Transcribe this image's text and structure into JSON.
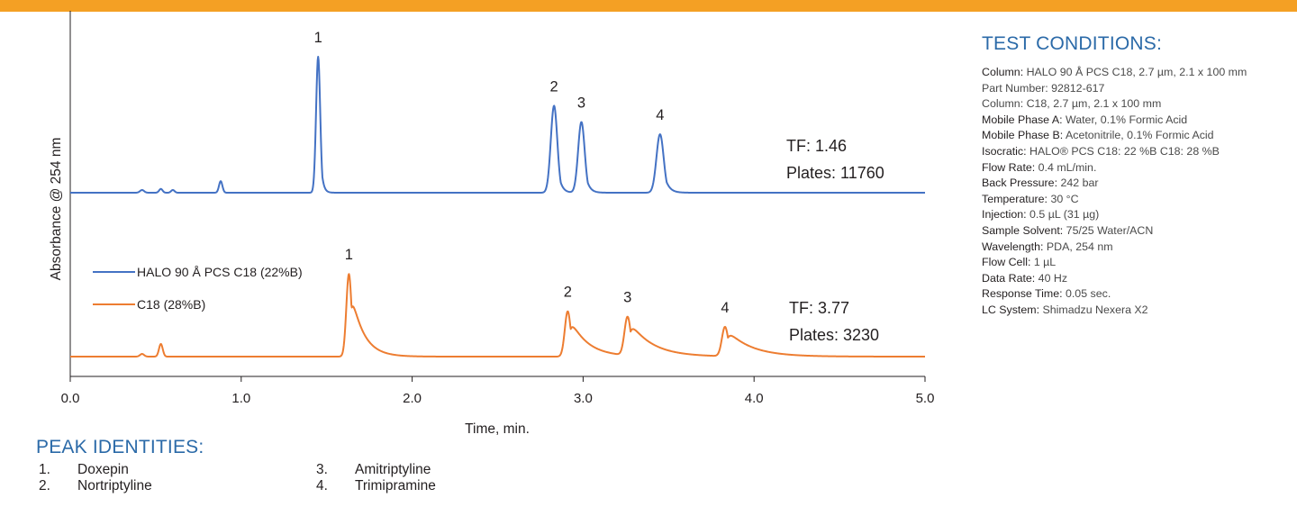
{
  "colors": {
    "banner": "#f4a024",
    "halo": "#4472c4",
    "c18": "#ed7d31",
    "heading": "#2b6aa8"
  },
  "chart_data": {
    "type": "line",
    "xlabel": "Time, min.",
    "ylabel": "Absorbance @ 254 nm",
    "xlim": [
      0,
      5
    ],
    "x_ticks": [
      "0.0",
      "1.0",
      "2.0",
      "3.0",
      "4.0",
      "5.0"
    ],
    "legend_position": "left",
    "series": [
      {
        "name": "HALO 90 Å PCS C18 (22%B)",
        "color": "#4472c4",
        "peaks": [
          {
            "t": 0.42,
            "h": 0.02,
            "w": 0.012
          },
          {
            "t": 0.53,
            "h": 0.028,
            "w": 0.01
          },
          {
            "t": 0.6,
            "h": 0.02,
            "w": 0.01
          },
          {
            "t": 0.88,
            "h": 0.085,
            "w": 0.01
          },
          {
            "t": 1.45,
            "h": 1.0,
            "w": 0.012,
            "tail": 0.012
          },
          {
            "t": 2.83,
            "h": 0.64,
            "w": 0.019,
            "tail": 0.019
          },
          {
            "t": 2.99,
            "h": 0.52,
            "w": 0.019,
            "tail": 0.02
          },
          {
            "t": 3.45,
            "h": 0.43,
            "w": 0.021,
            "tail": 0.024
          }
        ],
        "peak_labels": [
          {
            "label": "1",
            "t": 1.45
          },
          {
            "label": "2",
            "t": 2.83
          },
          {
            "label": "3",
            "t": 2.99
          },
          {
            "label": "4",
            "t": 3.45
          }
        ],
        "annotation": {
          "tf": "TF: 1.46",
          "plates": "Plates: 11760"
        }
      },
      {
        "name": "C18 (28%B)",
        "color": "#ed7d31",
        "peaks": [
          {
            "t": 0.42,
            "h": 0.02,
            "w": 0.012
          },
          {
            "t": 0.53,
            "h": 0.095,
            "w": 0.011
          },
          {
            "t": 1.63,
            "h": 0.62,
            "w": 0.015,
            "tail": 0.07
          },
          {
            "t": 2.91,
            "h": 0.34,
            "w": 0.017,
            "tail": 0.1
          },
          {
            "t": 3.26,
            "h": 0.29,
            "w": 0.018,
            "tail": 0.13
          },
          {
            "t": 3.83,
            "h": 0.22,
            "w": 0.018,
            "tail": 0.14
          }
        ],
        "peak_labels": [
          {
            "label": "1",
            "t": 1.63
          },
          {
            "label": "2",
            "t": 2.91
          },
          {
            "label": "3",
            "t": 3.26
          },
          {
            "label": "4",
            "t": 3.83
          }
        ],
        "annotation": {
          "tf": "TF: 3.77",
          "plates": "Plates: 3230"
        }
      }
    ]
  },
  "test_conditions": {
    "title": "TEST CONDITIONS:",
    "rows": [
      {
        "key": "Column:",
        "value": " HALO 90 Å PCS C18, 2.7 µm, 2.1 x 100 mm"
      },
      {
        "key": "",
        "value": "Part Number: 92812-617"
      },
      {
        "key": "",
        "value": "Column: C18, 2.7 µm, 2.1 x 100 mm"
      },
      {
        "key": "Mobile Phase A:",
        "value": " Water, 0.1% Formic Acid"
      },
      {
        "key": "Mobile Phase B:",
        "value": "  Acetonitrile, 0.1% Formic Acid"
      },
      {
        "key": "Isocratic:",
        "value": " HALO® PCS C18: 22 %B C18: 28 %B"
      },
      {
        "key": "Flow Rate:",
        "value": " 0.4 mL/min."
      },
      {
        "key": "Back Pressure:",
        "value": " 242 bar"
      },
      {
        "key": "Temperature:",
        "value": " 30 °C"
      },
      {
        "key": "Injection:",
        "value": " 0.5 µL (31 µg)"
      },
      {
        "key": "Sample Solvent:",
        "value": " 75/25 Water/ACN"
      },
      {
        "key": "Wavelength:",
        "value": " PDA, 254 nm"
      },
      {
        "key": "Flow Cell:",
        "value": " 1 µL"
      },
      {
        "key": "Data Rate:",
        "value": " 40 Hz"
      },
      {
        "key": "Response Time:",
        "value": " 0.05 sec."
      },
      {
        "key": "LC System:",
        "value": " Shimadzu Nexera X2"
      }
    ]
  },
  "peak_identities": {
    "title": "PEAK IDENTITIES:",
    "items": [
      {
        "num": "1.",
        "name": "Doxepin"
      },
      {
        "num": "2.",
        "name": "Nortriptyline"
      },
      {
        "num": "3.",
        "name": "Amitriptyline"
      },
      {
        "num": "4.",
        "name": "Trimipramine"
      }
    ]
  }
}
